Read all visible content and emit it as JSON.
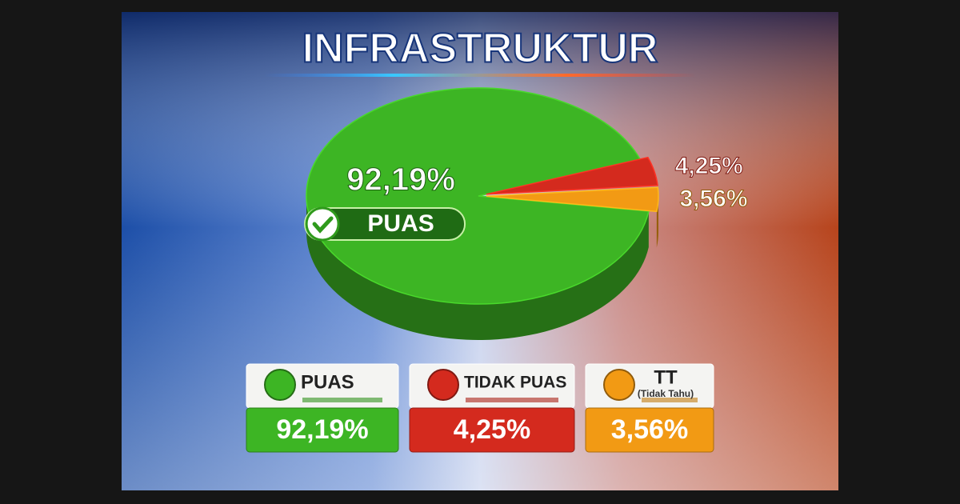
{
  "chart_data": {
    "type": "pie",
    "title": "INFRASTRUKTUR",
    "categories": [
      "PUAS",
      "TIDAK PUAS",
      "TT"
    ],
    "values": [
      92.19,
      4.25,
      3.56
    ],
    "value_labels": [
      "92,19%",
      "4,25%",
      "3,56%"
    ],
    "colors": [
      "#3db524",
      "#d42a1e",
      "#f29a14"
    ],
    "annotations": [
      "(Tidak Tahu)"
    ]
  }
}
